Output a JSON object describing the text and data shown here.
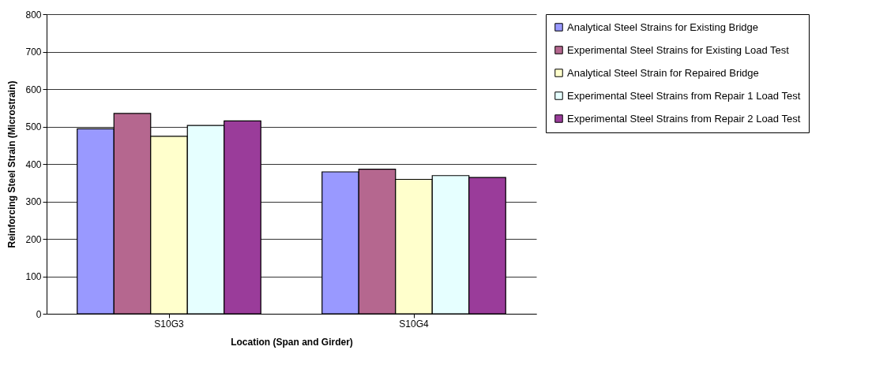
{
  "chart_data": {
    "type": "bar",
    "xlabel": "Location (Span and Girder)",
    "ylabel": "Reinforcing Steel Strain (Microstrain)",
    "categories": [
      "S10G3",
      "S10G4"
    ],
    "series": [
      {
        "name": "Analytical Steel Strains for Existing Bridge",
        "color": "#9999ff",
        "values": [
          494,
          379
        ]
      },
      {
        "name": "Experimental Steel Strains for Existing Load Test",
        "color": "#b5678f",
        "values": [
          535,
          386
        ]
      },
      {
        "name": "Analytical Steel Strain for Repaired Bridge",
        "color": "#ffffcc",
        "values": [
          474,
          359
        ]
      },
      {
        "name": "Experimental Steel Strains from Repair 1 Load Test",
        "color": "#e6ffff",
        "values": [
          503,
          369
        ]
      },
      {
        "name": "Experimental Steel Strains from Repair 2 Load Test",
        "color": "#9a3c9a",
        "values": [
          515,
          364
        ]
      }
    ],
    "ylim": [
      0,
      800
    ],
    "yticks": [
      0,
      100,
      200,
      300,
      400,
      500,
      600,
      700,
      800
    ],
    "grid": "y",
    "legend": "right"
  }
}
